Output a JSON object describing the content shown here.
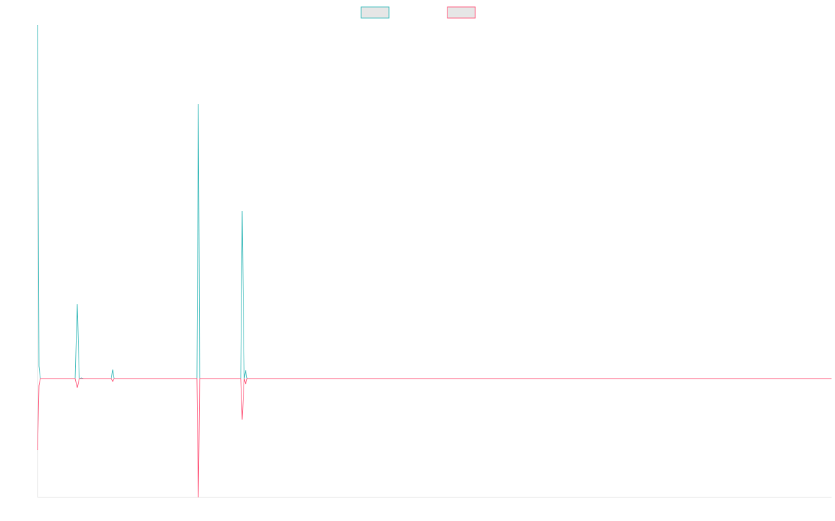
{
  "chart_data": {
    "type": "line",
    "x": [
      0,
      2,
      4,
      54,
      57,
      60,
      63,
      66,
      106,
      108,
      110,
      229,
      231,
      233,
      292,
      294,
      297,
      299,
      301,
      1141
    ],
    "series": [
      {
        "color": "#4bc0c0",
        "values": [
          509,
          18,
          0,
          0,
          107,
          0,
          1,
          0,
          0,
          13,
          0,
          0,
          395,
          0,
          0,
          241,
          0,
          12,
          0,
          0
        ]
      },
      {
        "color": "#ff6384",
        "values": [
          -103,
          -10,
          0,
          0,
          -13,
          0,
          0,
          0,
          0,
          -4,
          0,
          0,
          -171,
          0,
          0,
          -59,
          0,
          -8,
          0,
          0
        ]
      }
    ],
    "xlim": [
      0,
      1141
    ],
    "ylim": [
      -171,
      509
    ],
    "legend": "top"
  }
}
